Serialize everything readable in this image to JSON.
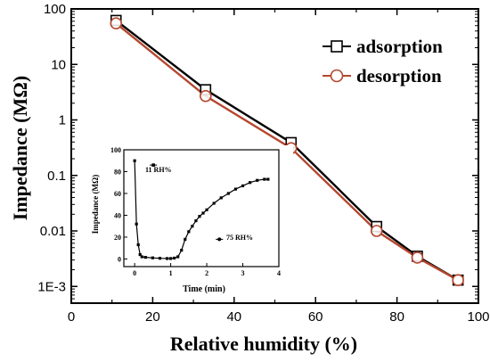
{
  "chart_data": [
    {
      "type": "line",
      "xlabel": "Relative humidity (%)",
      "ylabel": "Impedance (MΩ)",
      "xlim": [
        0,
        100
      ],
      "ylim": [
        0.0005,
        100
      ],
      "yscale": "log",
      "x_ticks": [
        "0",
        "20",
        "40",
        "60",
        "80",
        "100"
      ],
      "y_ticks": [
        "1E-3",
        "0.01",
        "0.1",
        "1",
        "10",
        "100"
      ],
      "legend_position": "top-right",
      "x": [
        11,
        33,
        54,
        75,
        85,
        95
      ],
      "series": [
        {
          "name": "adsorption",
          "marker": "open-square",
          "color": "#000000",
          "values": [
            62,
            3.5,
            0.39,
            0.012,
            0.0035,
            0.0013
          ]
        },
        {
          "name": "desorption",
          "marker": "open-circle",
          "color": "#b5472f",
          "values": [
            55,
            2.7,
            0.31,
            0.01,
            0.0033,
            0.0013
          ]
        }
      ]
    },
    {
      "type": "line",
      "xlabel": "Time (min)",
      "ylabel": "Impedance (MΩ)",
      "xlim": [
        -0.3,
        4
      ],
      "ylim": [
        -7,
        100
      ],
      "x_ticks": [
        "0",
        "1",
        "2",
        "3",
        "4"
      ],
      "y_ticks": [
        "0",
        "20",
        "40",
        "60",
        "80",
        "100"
      ],
      "annotations": [
        "11 RH%",
        "75 RH%"
      ],
      "x": [
        0,
        0.05,
        0.1,
        0.15,
        0.2,
        0.3,
        0.5,
        0.7,
        0.9,
        1.0,
        1.1,
        1.2,
        1.3,
        1.4,
        1.5,
        1.6,
        1.7,
        1.8,
        1.9,
        2.0,
        2.2,
        2.4,
        2.6,
        2.8,
        3.0,
        3.2,
        3.4,
        3.6,
        3.7
      ],
      "series": [
        {
          "name": "",
          "marker": "filled-square",
          "color": "#000000",
          "values": [
            90,
            32,
            13,
            4,
            2,
            1.5,
            1,
            0.6,
            0.4,
            0.4,
            0.8,
            2,
            8,
            18,
            25,
            30,
            35,
            39,
            42,
            45,
            51,
            56,
            60,
            64,
            67,
            70,
            72,
            73,
            73
          ]
        }
      ]
    }
  ]
}
